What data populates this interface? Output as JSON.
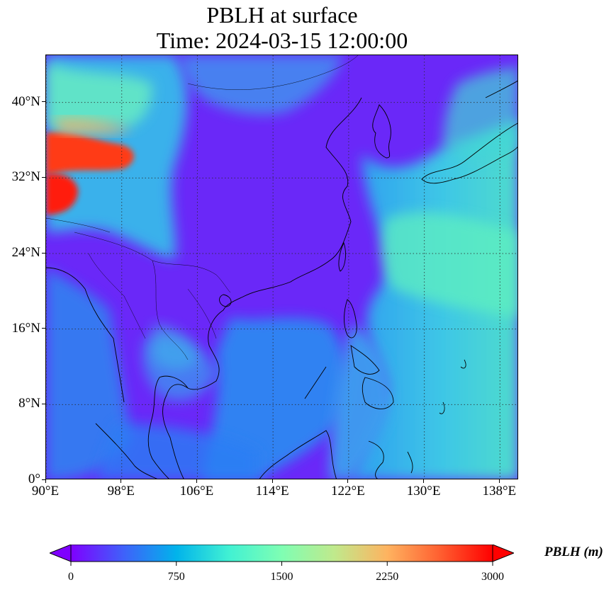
{
  "title": {
    "line1": "PBLH at surface",
    "line2": "Time: 2024-03-15 12:00:00"
  },
  "map": {
    "projection": "PlateCarree",
    "lon_range": [
      90,
      140
    ],
    "lat_range": [
      0,
      45
    ],
    "gridlines": true,
    "gridline_style": "dotted",
    "x_ticks": [
      {
        "value": 90,
        "label": "90°E"
      },
      {
        "value": 98,
        "label": "98°E"
      },
      {
        "value": 106,
        "label": "106°E"
      },
      {
        "value": 114,
        "label": "114°E"
      },
      {
        "value": 122,
        "label": "122°E"
      },
      {
        "value": 130,
        "label": "130°E"
      },
      {
        "value": 138,
        "label": "138°E"
      }
    ],
    "y_ticks": [
      {
        "value": 0,
        "label": "0°"
      },
      {
        "value": 8,
        "label": "8°N"
      },
      {
        "value": 16,
        "label": "16°N"
      },
      {
        "value": 24,
        "label": "24°N"
      },
      {
        "value": 32,
        "label": "32°N"
      },
      {
        "value": 40,
        "label": "40°N"
      }
    ],
    "colors": {
      "background_low": "#6a28f8",
      "ocean_mid": "#2f9ef0",
      "ocean_high": "#5fe8c0",
      "highlands_high": "#ff2a10",
      "coastline": "#000000"
    }
  },
  "colorbar": {
    "label": "PBLH (m)",
    "min": 0,
    "max": 3000,
    "extend": "both",
    "colormap": "rainbow",
    "ticks": [
      {
        "value": 0,
        "label": "0"
      },
      {
        "value": 750,
        "label": "750"
      },
      {
        "value": 1500,
        "label": "1500"
      },
      {
        "value": 2250,
        "label": "2250"
      },
      {
        "value": 3000,
        "label": "3000"
      }
    ],
    "colors": [
      "#7f00ff",
      "#3f61fa",
      "#01b3eb",
      "#41f1d3",
      "#7ffeb3",
      "#c0e98c",
      "#feb360",
      "#ff5f30",
      "#ff0000"
    ]
  }
}
